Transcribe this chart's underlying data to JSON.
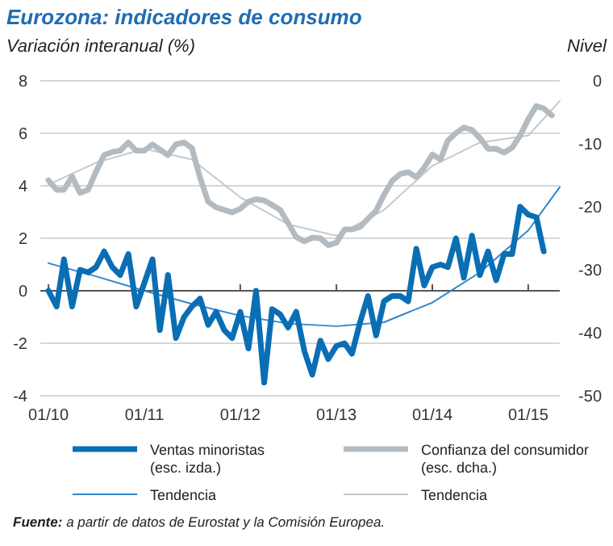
{
  "chart_data": {
    "type": "line",
    "title": "Eurozona: indicadores de consumo",
    "ylabel": "Variación interanual (%)",
    "y2label": "Nivel",
    "annotations": [
      "Fuente: a partir de datos de Eurostat y la Comisión Europea."
    ],
    "xlim": [
      "2009-12",
      "2015-05"
    ],
    "xticks": [
      {
        "value": "2010-01",
        "label": "01/10"
      },
      {
        "value": "2011-01",
        "label": "01/11"
      },
      {
        "value": "2012-01",
        "label": "01/12"
      },
      {
        "value": "2013-01",
        "label": "01/13"
      },
      {
        "value": "2014-01",
        "label": "01/14"
      },
      {
        "value": "2015-01",
        "label": "01/15"
      }
    ],
    "ylim": [
      -4,
      8
    ],
    "yticks": [
      -4,
      -2,
      0,
      2,
      4,
      6,
      8
    ],
    "y2lim": [
      -50,
      0
    ],
    "y2ticks": [
      -50,
      -40,
      -30,
      -20,
      -10,
      0
    ],
    "grid": "y",
    "legend": "bottom",
    "line_style": "solid",
    "series": [
      {
        "name": "Ventas minoristas (esc. izda.)",
        "color": "#0a6eb4",
        "x": [
          "2010-01",
          "2010-02",
          "2010-03",
          "2010-04",
          "2010-05",
          "2010-06",
          "2010-07",
          "2010-08",
          "2010-09",
          "2010-10",
          "2010-11",
          "2010-12",
          "2011-01",
          "2011-02",
          "2011-03",
          "2011-04",
          "2011-05",
          "2011-06",
          "2011-07",
          "2011-08",
          "2011-09",
          "2011-10",
          "2011-11",
          "2011-12",
          "2012-01",
          "2012-02",
          "2012-03",
          "2012-04",
          "2012-05",
          "2012-06",
          "2012-07",
          "2012-08",
          "2012-09",
          "2012-10",
          "2012-11",
          "2012-12",
          "2013-01",
          "2013-02",
          "2013-03",
          "2013-04",
          "2013-05",
          "2013-06",
          "2013-07",
          "2013-08",
          "2013-09",
          "2013-10",
          "2013-11",
          "2013-12",
          "2014-01",
          "2014-02",
          "2014-03",
          "2014-04",
          "2014-05",
          "2014-06",
          "2014-07",
          "2014-08",
          "2014-09",
          "2014-10",
          "2014-11",
          "2014-12",
          "2015-01",
          "2015-02",
          "2015-03"
        ],
        "values": [
          0.0,
          -0.6,
          1.2,
          -0.6,
          0.8,
          0.7,
          0.9,
          1.5,
          0.9,
          0.6,
          1.4,
          -0.6,
          0.3,
          1.2,
          -1.5,
          0.6,
          -1.8,
          -1.0,
          -0.6,
          -0.3,
          -1.3,
          -0.8,
          -1.5,
          -1.8,
          -0.8,
          -2.2,
          0.0,
          -3.5,
          -0.7,
          -0.9,
          -1.4,
          -0.8,
          -2.3,
          -3.2,
          -1.9,
          -2.6,
          -2.1,
          -2.0,
          -2.4,
          -1.2,
          -0.2,
          -1.7,
          -0.4,
          -0.2,
          -0.2,
          -0.4,
          1.6,
          0.2,
          0.9,
          1.0,
          0.9,
          2.0,
          0.5,
          2.1,
          0.6,
          1.5,
          0.4,
          1.4,
          1.4,
          3.2,
          2.9,
          2.8,
          1.5
        ]
      },
      {
        "name": "Confianza del consumidor (esc. dcha.)",
        "color": "#b4bbc0",
        "axis": "y2",
        "x": [
          "2010-01",
          "2010-02",
          "2010-03",
          "2010-04",
          "2010-05",
          "2010-06",
          "2010-07",
          "2010-08",
          "2010-09",
          "2010-10",
          "2010-11",
          "2010-12",
          "2011-01",
          "2011-02",
          "2011-03",
          "2011-04",
          "2011-05",
          "2011-06",
          "2011-07",
          "2011-08",
          "2011-09",
          "2011-10",
          "2011-11",
          "2011-12",
          "2012-01",
          "2012-02",
          "2012-03",
          "2012-04",
          "2012-05",
          "2012-06",
          "2012-07",
          "2012-08",
          "2012-09",
          "2012-10",
          "2012-11",
          "2012-12",
          "2013-01",
          "2013-02",
          "2013-03",
          "2013-04",
          "2013-05",
          "2013-06",
          "2013-07",
          "2013-08",
          "2013-09",
          "2013-10",
          "2013-11",
          "2013-12",
          "2014-01",
          "2014-02",
          "2014-03",
          "2014-04",
          "2014-05",
          "2014-06",
          "2014-07",
          "2014-08",
          "2014-09",
          "2014-10",
          "2014-11",
          "2014-12",
          "2015-01",
          "2015-02",
          "2015-03",
          "2015-04"
        ],
        "values": [
          -15.8,
          -17.3,
          -17.3,
          -15.2,
          -17.8,
          -17.3,
          -14.4,
          -11.8,
          -11.3,
          -11.1,
          -9.8,
          -11.1,
          -11.1,
          -10.1,
          -10.9,
          -11.8,
          -10.1,
          -9.8,
          -10.7,
          -15.4,
          -19.2,
          -20.1,
          -20.5,
          -20.9,
          -20.3,
          -19.2,
          -18.8,
          -19.0,
          -19.7,
          -20.5,
          -22.6,
          -24.8,
          -25.5,
          -24.9,
          -25.0,
          -26.1,
          -25.7,
          -23.6,
          -23.6,
          -23.2,
          -21.9,
          -20.6,
          -18.1,
          -15.9,
          -14.8,
          -14.5,
          -15.3,
          -13.8,
          -11.7,
          -12.5,
          -9.5,
          -8.3,
          -7.4,
          -7.8,
          -9.1,
          -10.8,
          -10.8,
          -11.4,
          -10.6,
          -8.7,
          -6.1,
          -4.0,
          -4.4,
          -5.5
        ]
      },
      {
        "name": "Tendencia",
        "color": "#2f86cc",
        "x": [
          "2010-01",
          "2010-07",
          "2011-01",
          "2011-07",
          "2012-01",
          "2012-07",
          "2013-01",
          "2013-07",
          "2014-01",
          "2014-07",
          "2015-01",
          "2015-05"
        ],
        "values": [
          1.05,
          0.55,
          0.0,
          -0.5,
          -0.95,
          -1.25,
          -1.35,
          -1.2,
          -0.45,
          0.7,
          2.3,
          3.95
        ]
      },
      {
        "name": "Tendencia",
        "color": "#c3c9cd",
        "axis": "y2",
        "x": [
          "2010-01",
          "2010-07",
          "2011-01",
          "2011-07",
          "2012-01",
          "2012-07",
          "2013-01",
          "2013-07",
          "2014-01",
          "2014-07",
          "2015-01",
          "2015-05"
        ],
        "values": [
          -16.5,
          -13.0,
          -10.8,
          -12.5,
          -18.5,
          -22.8,
          -24.6,
          -20.5,
          -13.5,
          -9.8,
          -8.7,
          -3.2
        ]
      }
    ]
  }
}
